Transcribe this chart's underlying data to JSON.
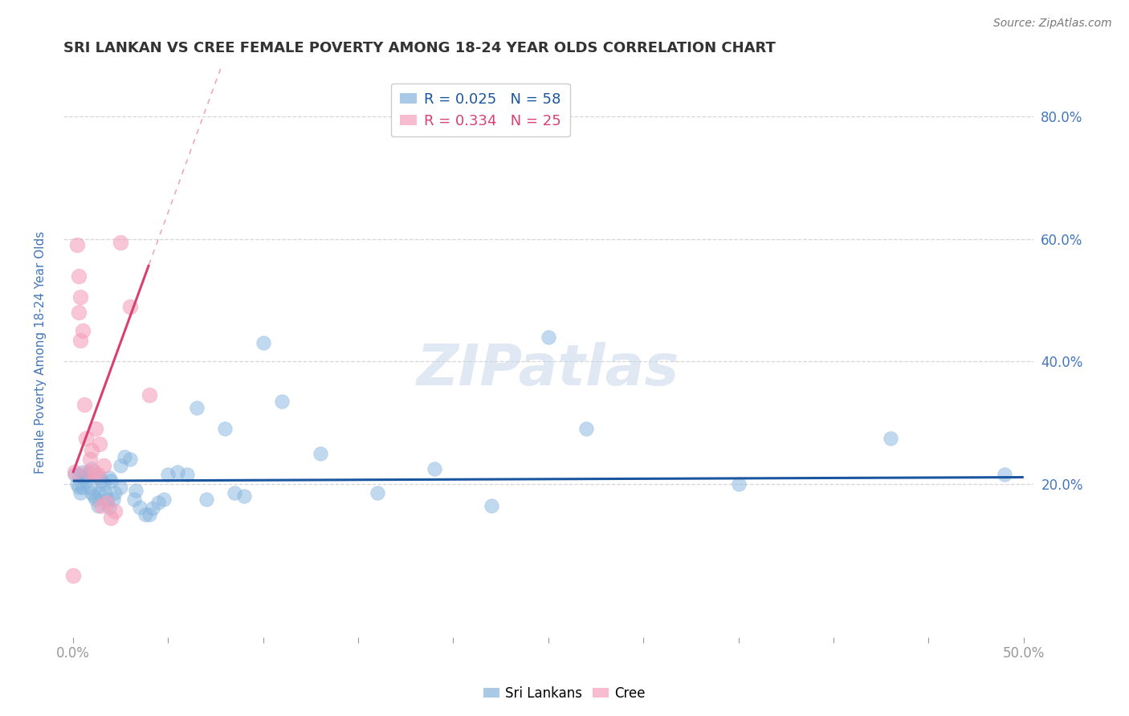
{
  "title": "SRI LANKAN VS CREE FEMALE POVERTY AMONG 18-24 YEAR OLDS CORRELATION CHART",
  "source": "Source: ZipAtlas.com",
  "ylabel": "Female Poverty Among 18-24 Year Olds",
  "xlim": [
    -0.005,
    0.505
  ],
  "ylim": [
    -0.05,
    0.88
  ],
  "xticks": [
    0.0,
    0.05,
    0.1,
    0.15,
    0.2,
    0.25,
    0.3,
    0.35,
    0.4,
    0.45,
    0.5
  ],
  "xticklabels_show": [
    "0.0%",
    "50.0%"
  ],
  "yticks": [
    0.2,
    0.4,
    0.6,
    0.8
  ],
  "yticklabels": [
    "20.0%",
    "40.0%",
    "60.0%",
    "80.0%"
  ],
  "grid_color": "#cccccc",
  "background_color": "#ffffff",
  "sri_lankans_color": "#85b4de",
  "cree_color": "#f4a0bb",
  "sri_lankans_R": 0.025,
  "sri_lankans_N": 58,
  "cree_R": 0.334,
  "cree_N": 25,
  "sri_line_color": "#1a56a0",
  "cree_line_color": "#d94070",
  "title_color": "#333333",
  "tick_color": "#4477bb",
  "watermark": "ZIPatlas",
  "sl_line_y_intercept": 0.205,
  "sl_line_slope": 0.01,
  "cree_line_y_intercept": 0.22,
  "cree_line_slope": 8.0,
  "sl_x": [
    0.001,
    0.002,
    0.003,
    0.003,
    0.004,
    0.005,
    0.005,
    0.006,
    0.007,
    0.008,
    0.009,
    0.01,
    0.01,
    0.011,
    0.012,
    0.013,
    0.014,
    0.014,
    0.015,
    0.016,
    0.017,
    0.018,
    0.019,
    0.019,
    0.02,
    0.021,
    0.022,
    0.025,
    0.025,
    0.027,
    0.03,
    0.032,
    0.033,
    0.035,
    0.038,
    0.04,
    0.042,
    0.045,
    0.048,
    0.05,
    0.055,
    0.06,
    0.065,
    0.07,
    0.08,
    0.085,
    0.09,
    0.1,
    0.11,
    0.13,
    0.16,
    0.19,
    0.22,
    0.25,
    0.27,
    0.35,
    0.43,
    0.49
  ],
  "sl_y": [
    0.215,
    0.2,
    0.215,
    0.195,
    0.185,
    0.22,
    0.195,
    0.21,
    0.205,
    0.215,
    0.195,
    0.185,
    0.225,
    0.18,
    0.175,
    0.165,
    0.185,
    0.21,
    0.205,
    0.2,
    0.185,
    0.175,
    0.162,
    0.21,
    0.205,
    0.175,
    0.185,
    0.195,
    0.23,
    0.245,
    0.24,
    0.175,
    0.19,
    0.162,
    0.15,
    0.15,
    0.16,
    0.17,
    0.175,
    0.215,
    0.22,
    0.215,
    0.325,
    0.175,
    0.29,
    0.185,
    0.18,
    0.43,
    0.335,
    0.25,
    0.185,
    0.225,
    0.165,
    0.44,
    0.29,
    0.2,
    0.275,
    0.215
  ],
  "cr_x": [
    0.0,
    0.001,
    0.002,
    0.003,
    0.003,
    0.004,
    0.004,
    0.005,
    0.006,
    0.007,
    0.008,
    0.009,
    0.01,
    0.011,
    0.012,
    0.013,
    0.014,
    0.015,
    0.016,
    0.018,
    0.02,
    0.022,
    0.025,
    0.03,
    0.04
  ],
  "cr_y": [
    0.05,
    0.22,
    0.59,
    0.48,
    0.54,
    0.435,
    0.505,
    0.45,
    0.33,
    0.275,
    0.22,
    0.24,
    0.255,
    0.22,
    0.29,
    0.215,
    0.265,
    0.165,
    0.23,
    0.17,
    0.145,
    0.155,
    0.595,
    0.49,
    0.345
  ]
}
